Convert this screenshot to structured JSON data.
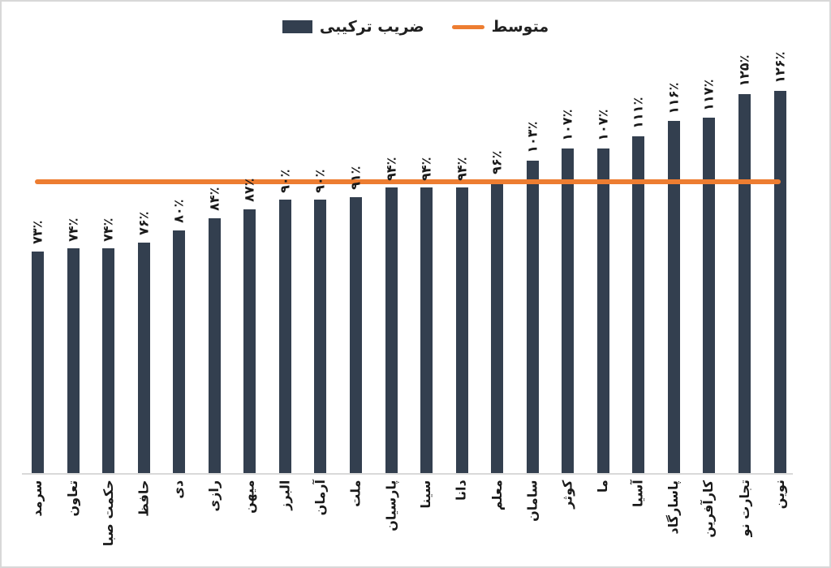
{
  "legend": {
    "series_label": "ضریب ترکیبی",
    "average_label": "متوسط"
  },
  "colors": {
    "bar": "#333F4F",
    "average_line": "#ED7D31",
    "axis_line": "#D9D9D9",
    "label_text": "#1A1A1A"
  },
  "chart_data": {
    "type": "bar",
    "title": "",
    "xlabel": "",
    "ylabel": "",
    "grid": false,
    "legend_position": "top-center",
    "ylim": [
      0,
      130
    ],
    "unit": "%",
    "number_locale": "fa",
    "series_name": "ضریب ترکیبی",
    "categories": [
      "سرمد",
      "تعاون",
      "حکمت صبا",
      "حافظ",
      "دی",
      "رازی",
      "میهن",
      "البرز",
      "آرمان",
      "ملت",
      "پارسیان",
      "سینا",
      "دانا",
      "معلم",
      "سامان",
      "کوثر",
      "ما",
      "آسیا",
      "پاسارگاد",
      "کارآفرین",
      "تجارت نو",
      "نوین"
    ],
    "values": [
      73,
      74,
      74,
      76,
      80,
      84,
      87,
      90,
      90,
      91,
      94,
      94,
      94,
      96,
      103,
      107,
      107,
      111,
      116,
      117,
      125,
      126
    ],
    "value_labels": [
      "۷۳٪",
      "۷۴٪",
      "۷۴٪",
      "۷۶٪",
      "۸۰٪",
      "۸۴٪",
      "۸۷٪",
      "۹۰٪",
      "۹۰٪",
      "۹۱٪",
      "۹۴٪",
      "۹۴٪",
      "۹۴٪",
      "۹۶٪",
      "۱۰۳٪",
      "۱۰۷٪",
      "۱۰۷٪",
      "۱۱۱٪",
      "۱۱۶٪",
      "۱۱۷٪",
      "۱۲۵٪",
      "۱۲۶٪"
    ],
    "average_value": 96,
    "average_series_name": "متوسط"
  }
}
